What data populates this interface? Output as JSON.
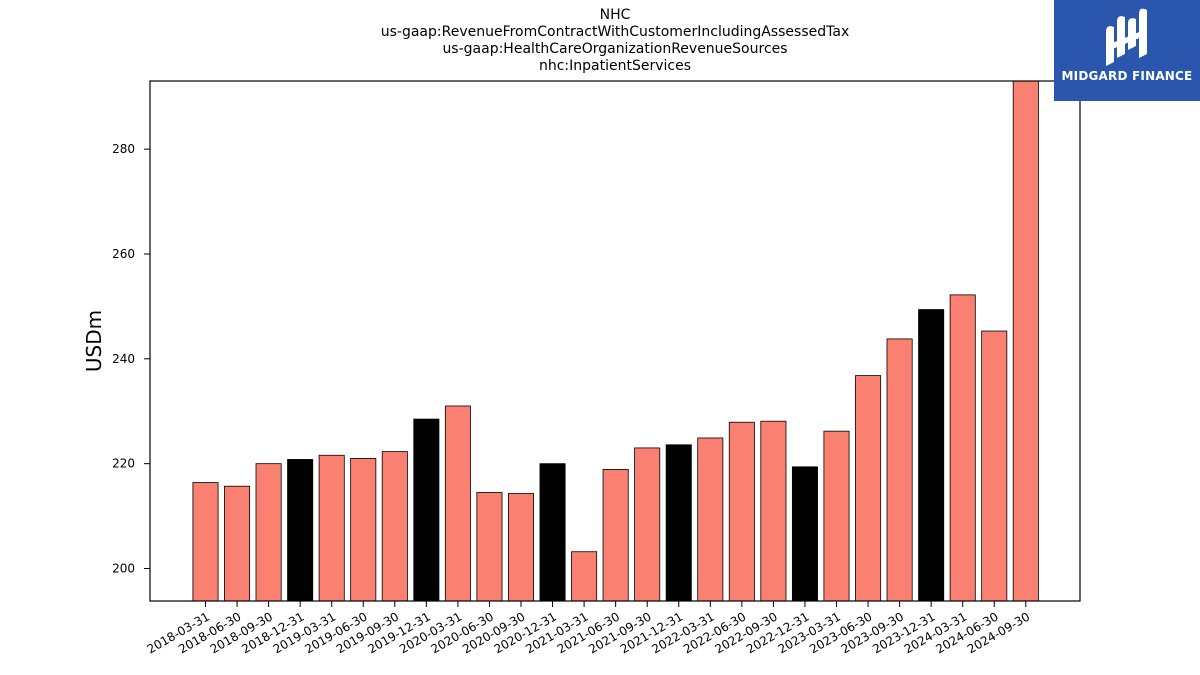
{
  "brand": {
    "name": "MIDGARD FINANCE",
    "bg_color": "#2a57ad",
    "mark_color": "#ffffff"
  },
  "chart_data": {
    "type": "bar",
    "title_lines": [
      "NHC",
      "us-gaap:RevenueFromContractWithCustomerIncludingAssessedTax",
      "us-gaap:HealthCareOrganizationRevenueSources",
      "nhc:InpatientServices"
    ],
    "xlabel": "",
    "ylabel": "USDm",
    "ylim": [
      193.8,
      293
    ],
    "yticks": [
      200,
      220,
      240,
      260,
      280
    ],
    "grid": false,
    "colors": {
      "quarter": "#fa8072",
      "year_end": "#000000",
      "edge": "#000000"
    },
    "categories": [
      "2018-03-31",
      "2018-06-30",
      "2018-09-30",
      "2018-12-31",
      "2019-03-31",
      "2019-06-30",
      "2019-09-30",
      "2019-12-31",
      "2020-03-31",
      "2020-06-30",
      "2020-09-30",
      "2020-12-31",
      "2021-03-31",
      "2021-06-30",
      "2021-09-30",
      "2021-12-31",
      "2022-03-31",
      "2022-06-30",
      "2022-09-30",
      "2022-12-31",
      "2023-03-31",
      "2023-06-30",
      "2023-09-30",
      "2023-12-31",
      "2024-03-31",
      "2024-06-30",
      "2024-09-30"
    ],
    "values": [
      216.4,
      215.7,
      220.0,
      220.8,
      221.6,
      221.0,
      222.3,
      228.5,
      231.0,
      214.5,
      214.3,
      220.0,
      203.2,
      218.9,
      223.0,
      223.6,
      224.9,
      227.9,
      228.1,
      219.4,
      226.2,
      236.8,
      243.8,
      249.4,
      252.2,
      245.3,
      293.0
    ]
  }
}
